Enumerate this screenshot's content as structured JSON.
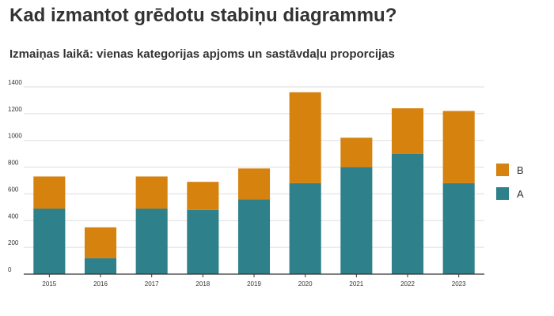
{
  "page": {
    "title": "Kad izmantot grēdotu stabiņu diagrammu?",
    "subtitle": "Izmaiņas laikā: vienas kategorijas apjoms un sastāvdaļu proporcijas"
  },
  "chart_data": {
    "type": "bar",
    "stacked": true,
    "title": "Kad izmantot grēdotu stabiņu diagrammu?",
    "subtitle": "Izmaiņas laikā: vienas kategorijas apjoms un sastāvdaļu proporcijas",
    "xlabel": "",
    "ylabel": "",
    "categories": [
      "2015",
      "2016",
      "2017",
      "2018",
      "2019",
      "2020",
      "2021",
      "2022",
      "2023"
    ],
    "series": [
      {
        "name": "A",
        "color": "#2e808a",
        "values": [
          490,
          120,
          490,
          480,
          560,
          680,
          800,
          900,
          680
        ]
      },
      {
        "name": "B",
        "color": "#d6820f",
        "values": [
          240,
          230,
          240,
          210,
          230,
          680,
          220,
          340,
          540
        ]
      }
    ],
    "yticks": [
      0,
      200,
      400,
      600,
      800,
      1000,
      1200,
      1400
    ],
    "ylim": [
      0,
      1400
    ],
    "grid": true,
    "legend": "right",
    "legend_order": [
      "B",
      "A"
    ]
  }
}
